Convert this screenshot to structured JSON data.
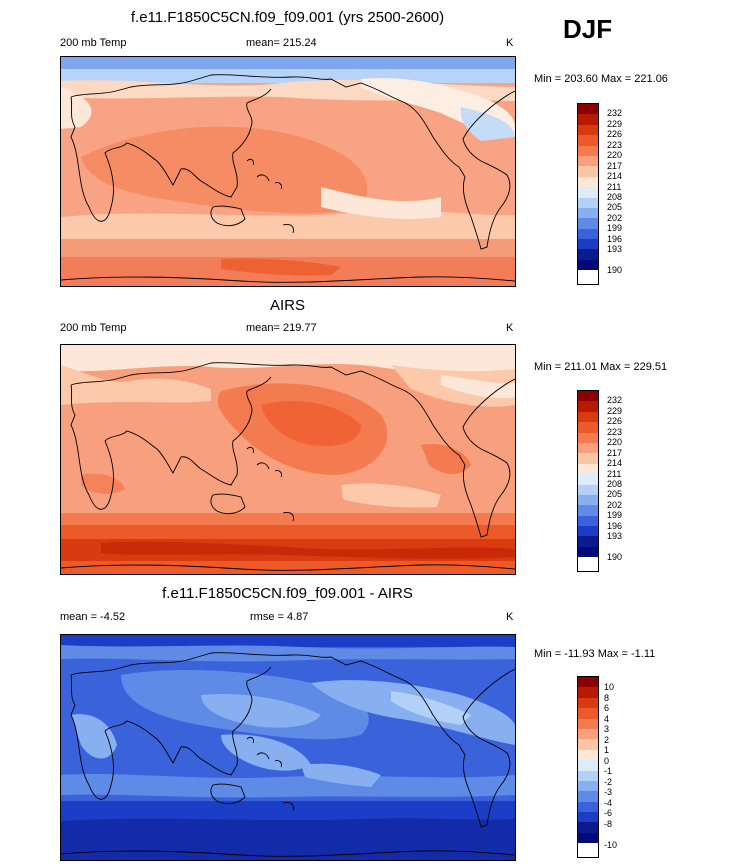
{
  "season": "DJF",
  "panels": [
    {
      "title": "f.e11.F1850C5CN.f09_f09.001 (yrs 2500-2600)",
      "left_label": "200 mb Temp",
      "center_label": "mean= 215.24",
      "units": "K",
      "minmax": "Min = 203.60 Max = 221.06",
      "levels": [
        "232",
        "229",
        "226",
        "223",
        "220",
        "217",
        "214",
        "211",
        "208",
        "205",
        "202",
        "199",
        "196",
        "193",
        "190"
      ]
    },
    {
      "title": "AIRS",
      "left_label": "200 mb Temp",
      "center_label": "mean= 219.77",
      "units": "K",
      "minmax": "Min = 211.01 Max = 229.51",
      "levels": [
        "232",
        "229",
        "226",
        "223",
        "220",
        "217",
        "214",
        "211",
        "208",
        "205",
        "202",
        "199",
        "196",
        "193",
        "190"
      ]
    },
    {
      "title": "f.e11.F1850C5CN.f09_f09.001 - AIRS",
      "left_label": "mean =  -4.52",
      "center_label": "rmse =   4.87",
      "units": "K",
      "minmax": "Min = -11.93 Max =  -1.11",
      "levels": [
        "10",
        "8",
        "6",
        "4",
        "3",
        "2",
        "1",
        "0",
        "-1",
        "-2",
        "-3",
        "-4",
        "-6",
        "-8",
        "-10"
      ]
    }
  ],
  "palette": [
    "#8b0000",
    "#b81a00",
    "#d93a10",
    "#ec5a2a",
    "#f47a50",
    "#f8a07e",
    "#fbc6a8",
    "#fde7d8",
    "#dcecfb",
    "#b3d0f7",
    "#88b0f0",
    "#5f8ae5",
    "#3a62db",
    "#1c3dc6",
    "#0b1a8c",
    "#000a78"
  ],
  "colors": {
    "land_outline": "#000000",
    "border": "#000000"
  }
}
